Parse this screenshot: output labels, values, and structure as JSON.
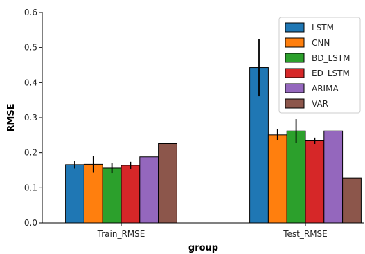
{
  "chart_data": {
    "type": "bar",
    "title": "",
    "xlabel": "group",
    "ylabel": "RMSE",
    "ylim": [
      0,
      0.6
    ],
    "yticks": [
      0.0,
      0.1,
      0.2,
      0.3,
      0.4,
      0.5,
      0.6
    ],
    "ytick_labels": [
      "0.0",
      "0.1",
      "0.2",
      "0.3",
      "0.4",
      "0.5",
      "0.6"
    ],
    "categories": [
      "Train_RMSE",
      "Test_RMSE"
    ],
    "legend_position": "top-right",
    "grid": false,
    "series": [
      {
        "name": "LSTM",
        "color": "#1f77b4",
        "values": [
          0.166,
          0.443
        ],
        "errors": [
          0.011,
          0.082
        ]
      },
      {
        "name": "CNN",
        "color": "#ff7f0e",
        "values": [
          0.167,
          0.251
        ],
        "errors": [
          0.024,
          0.016
        ]
      },
      {
        "name": "BD_LSTM",
        "color": "#2ca02c",
        "values": [
          0.156,
          0.262
        ],
        "errors": [
          0.014,
          0.034
        ]
      },
      {
        "name": "ED_LSTM",
        "color": "#d62728",
        "values": [
          0.164,
          0.234
        ],
        "errors": [
          0.01,
          0.009
        ]
      },
      {
        "name": "ARIMA",
        "color": "#9467bd",
        "values": [
          0.188,
          0.262
        ],
        "errors": [
          0,
          0
        ]
      },
      {
        "name": "VAR",
        "color": "#8c564b",
        "values": [
          0.226,
          0.128
        ],
        "errors": [
          0,
          0
        ]
      }
    ]
  }
}
